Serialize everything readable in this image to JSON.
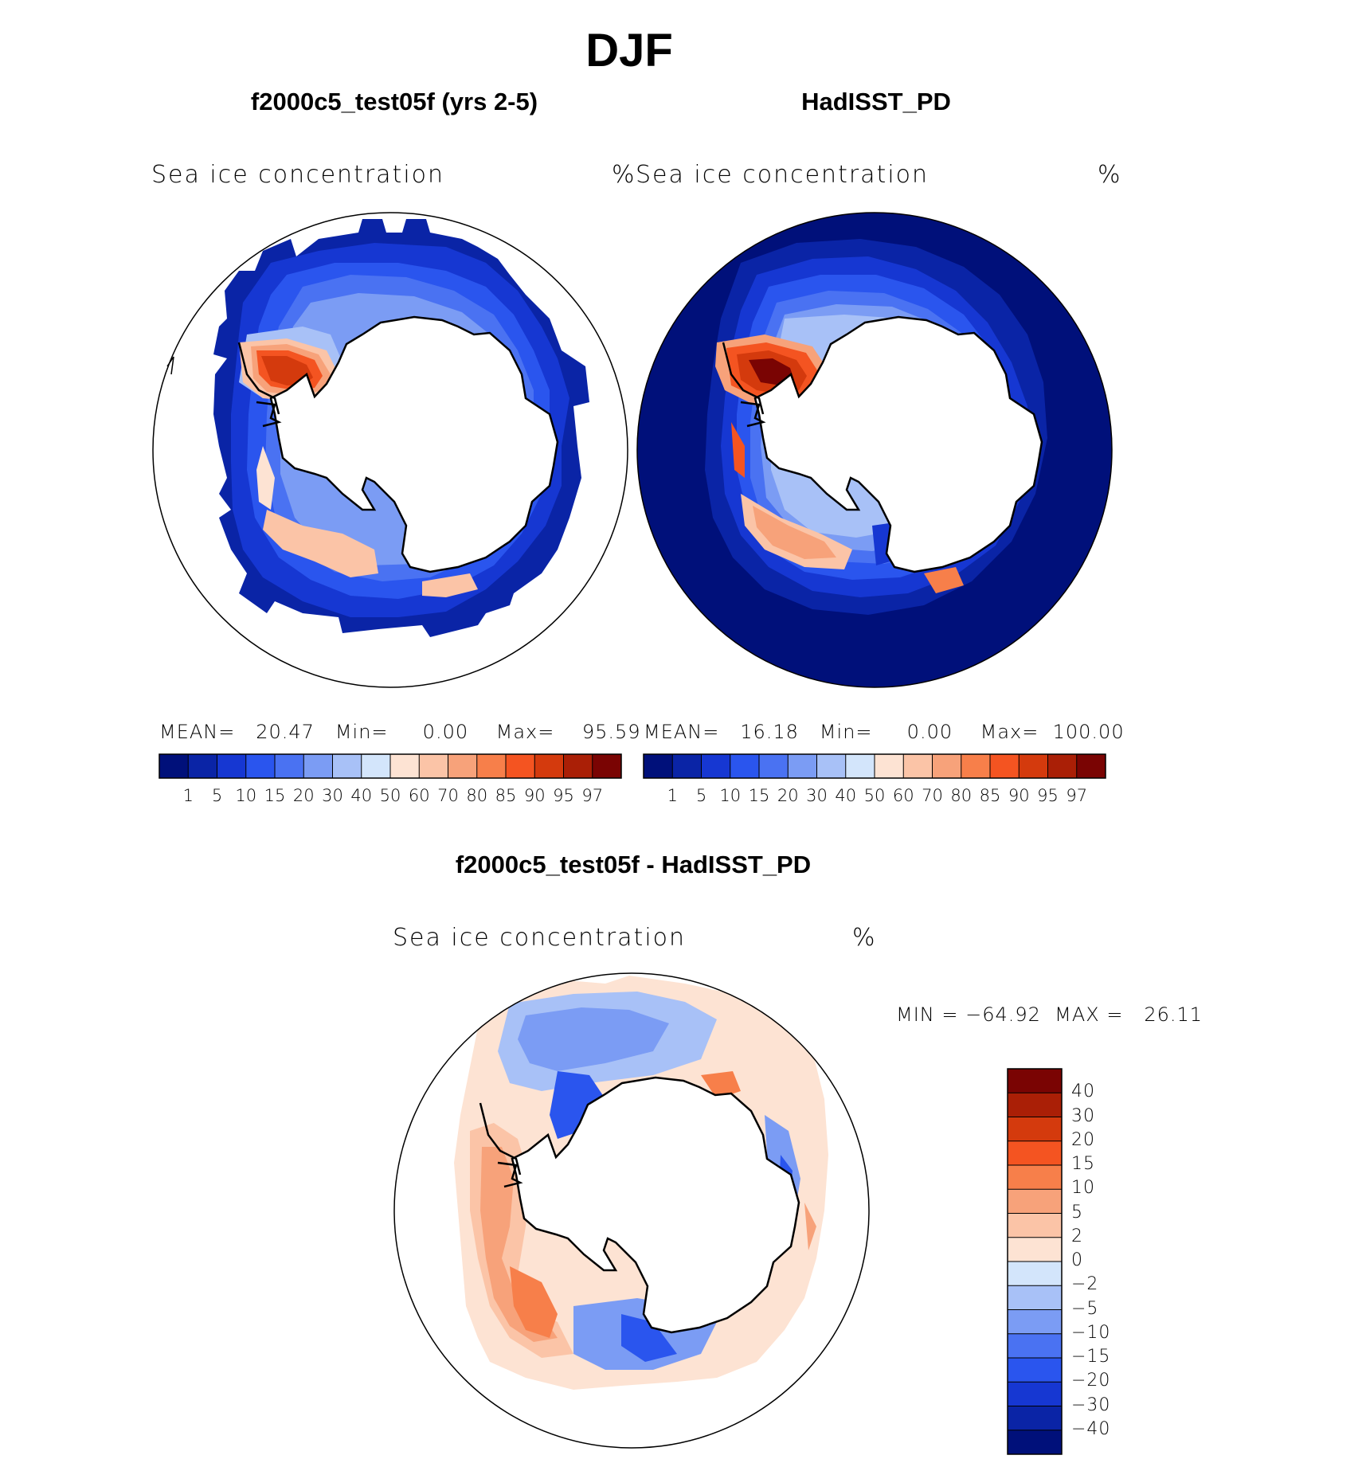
{
  "figure": {
    "title": "DJF",
    "bottom_title": "f2000c5_test05f - HadISST_PD",
    "bottom_variable": "Sea ice concentration",
    "bottom_units": "%",
    "bottom_minmax": "MIN = −64.92  MAX =   26.11"
  },
  "chart_data": [
    {
      "type": "heatmap",
      "title": "f2000c5_test05f (yrs 2-5)",
      "variable": "Sea ice concentration",
      "units": "%",
      "projection": "south polar stereographic",
      "stats": {
        "mean": 20.47,
        "min": 0.0,
        "max": 95.59
      },
      "stats_text": "MEAN=   20.47   Min=     0.00    Max=    95.59",
      "colorbar_levels": [
        "1",
        "5",
        "10",
        "15",
        "20",
        "30",
        "40",
        "50",
        "60",
        "70",
        "80",
        "85",
        "90",
        "95",
        "97"
      ],
      "colorbar_colors": [
        "#00107a",
        "#0a24a6",
        "#1637d2",
        "#2a55ee",
        "#4a72f2",
        "#7b9cf4",
        "#a8c1f7",
        "#d3e5fb",
        "#fde3d3",
        "#fbc4a7",
        "#f7a27a",
        "#f77f4a",
        "#f45421",
        "#d43a0d",
        "#aa1f06",
        "#7a0403"
      ]
    },
    {
      "type": "heatmap",
      "title": "HadISST_PD",
      "variable": "Sea ice concentration",
      "units": "%",
      "projection": "south polar stereographic",
      "stats": {
        "mean": 16.18,
        "min": 0.0,
        "max": 100.0
      },
      "stats_text": "MEAN=   16.18   Min=     0.00    Max=  100.00",
      "colorbar_levels": [
        "1",
        "5",
        "10",
        "15",
        "20",
        "30",
        "40",
        "50",
        "60",
        "70",
        "80",
        "85",
        "90",
        "95",
        "97"
      ],
      "colorbar_colors": [
        "#00107a",
        "#0a24a6",
        "#1637d2",
        "#2a55ee",
        "#4a72f2",
        "#7b9cf4",
        "#a8c1f7",
        "#d3e5fb",
        "#fde3d3",
        "#fbc4a7",
        "#f7a27a",
        "#f77f4a",
        "#f45421",
        "#d43a0d",
        "#aa1f06",
        "#7a0403"
      ]
    },
    {
      "type": "heatmap",
      "title": "f2000c5_test05f - HadISST_PD",
      "variable": "Sea ice concentration",
      "units": "%",
      "projection": "south polar stereographic",
      "stats": {
        "min": -64.92,
        "max": 26.11
      },
      "colorbar_levels": [
        "40",
        "30",
        "20",
        "15",
        "10",
        "5",
        "2",
        "0",
        "−2",
        "−5",
        "−10",
        "−15",
        "−20",
        "−30",
        "−40"
      ],
      "colorbar_colors": [
        "#7a0403",
        "#aa1f06",
        "#d43a0d",
        "#f45421",
        "#f77f4a",
        "#f7a27a",
        "#fbc4a7",
        "#fde3d3",
        "#d3e5fb",
        "#a8c1f7",
        "#7b9cf4",
        "#4a72f2",
        "#2a55ee",
        "#1637d2",
        "#0a24a6",
        "#00107a"
      ]
    }
  ]
}
